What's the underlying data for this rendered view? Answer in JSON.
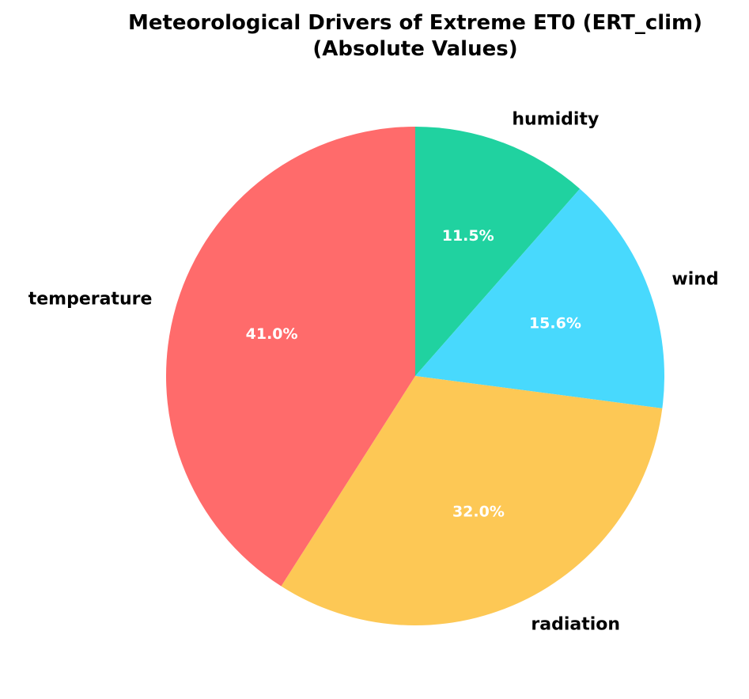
{
  "chart_data": {
    "type": "pie",
    "title_lines": [
      "Meteorological Drivers of Extreme ET0 (ERT_clim)",
      "(Absolute Values)"
    ],
    "categories": [
      "humidity",
      "wind",
      "radiation",
      "temperature"
    ],
    "values": [
      11.5,
      15.6,
      32.0,
      41.0
    ],
    "value_labels": [
      "11.5%",
      "15.6%",
      "32.0%",
      "41.0%"
    ],
    "colors": [
      "#20d2a0",
      "#48d9fd",
      "#fdc855",
      "#ff6b6b"
    ],
    "start_angle_deg": 90,
    "direction": "clockwise",
    "legend": "none"
  }
}
